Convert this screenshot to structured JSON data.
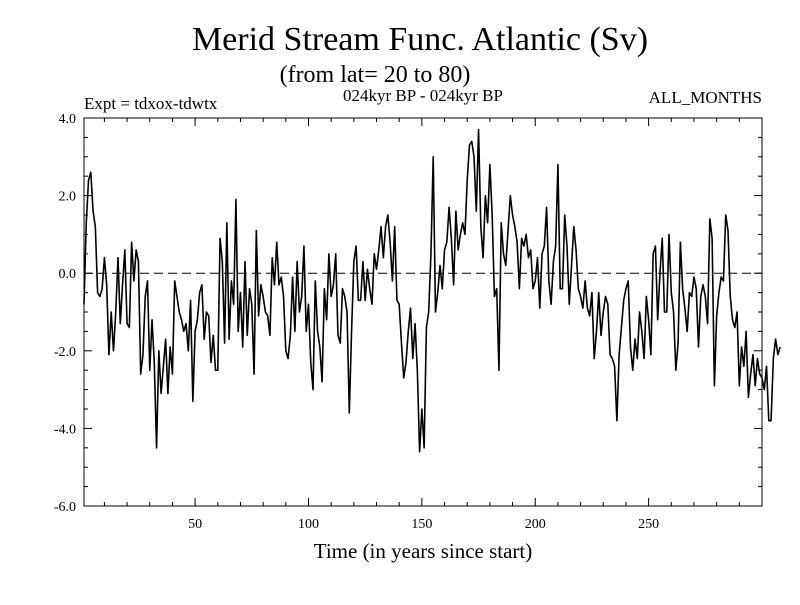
{
  "chart_data": {
    "type": "line",
    "title": "Merid Stream Func. Atlantic (Sv)",
    "subtitle": "(from lat= 20 to 80)",
    "header_left": "Expt = tdxox-tdwtx",
    "header_center": "024kyr BP - 024kyr BP",
    "header_right": "ALL_MONTHS",
    "xlabel": "Time (in years since start)",
    "ylabel": "",
    "xlim": [
      1,
      300
    ],
    "ylim": [
      -6,
      4
    ],
    "x_ticks": [
      50,
      100,
      150,
      200,
      250
    ],
    "x_tick_labels": [
      "50",
      "100",
      "150",
      "200",
      "250"
    ],
    "y_ticks": [
      -6,
      -4,
      -2,
      0,
      2,
      4
    ],
    "y_tick_labels": [
      "-6.0",
      "-4.0",
      "-2.0",
      "0.0",
      "2.0",
      "4.0"
    ],
    "reference_line": {
      "y": 0,
      "style": "dashed"
    },
    "grid": false,
    "line_color": "#000000",
    "series": [
      {
        "x_start": 1,
        "x_step": 1,
        "values": [
          -0.8,
          1.3,
          2.4,
          2.6,
          1.6,
          1.2,
          -0.5,
          -0.6,
          -0.4,
          0.4,
          -0.3,
          -2.1,
          -1.0,
          -2.0,
          -1.0,
          0.4,
          -1.3,
          -0.3,
          0.6,
          -1.3,
          -1.4,
          0.8,
          -0.2,
          0.6,
          0.3,
          -2.6,
          -2.1,
          -0.6,
          -0.2,
          -2.5,
          -1.2,
          -2.3,
          -4.5,
          -2.0,
          -3.1,
          -2.4,
          -1.7,
          -3.1,
          -1.9,
          -2.6,
          -0.2,
          -0.6,
          -1.0,
          -1.2,
          -1.5,
          -1.3,
          -2.0,
          -0.7,
          -3.3,
          -1.5,
          -1.2,
          -0.5,
          -0.3,
          -1.7,
          -1.0,
          -1.1,
          -2.3,
          -1.6,
          -2.5,
          -2.5,
          0.9,
          0.3,
          -1.8,
          1.3,
          -1.7,
          -0.2,
          -0.8,
          1.9,
          -1.5,
          -0.5,
          -1.9,
          0.3,
          -1.6,
          -0.4,
          -0.8,
          -2.6,
          1.1,
          -1.1,
          -0.3,
          -0.6,
          -1.0,
          -1.1,
          -1.6,
          0.4,
          -0.3,
          0.8,
          -0.3,
          -0.1,
          -0.6,
          -2.0,
          -2.2,
          -1.6,
          -0.1,
          -1.5,
          0.3,
          -1.0,
          -0.6,
          0.7,
          -1.5,
          -0.8,
          -2.3,
          -3.0,
          -0.2,
          -1.5,
          -1.9,
          -2.8,
          -0.4,
          -1.2,
          0.5,
          -0.6,
          -0.3,
          0.5,
          -1.6,
          -1.8,
          -0.4,
          -0.6,
          -1.0,
          -3.6,
          -1.5,
          0.3,
          0.7,
          -0.7,
          -0.7,
          0.3,
          -0.7,
          0.1,
          -0.4,
          -0.8,
          0.5,
          0.1,
          0.6,
          1.2,
          0.4,
          1.2,
          1.5,
          0.8,
          -0.2,
          1.2,
          -0.7,
          -0.8,
          -1.8,
          -2.7,
          -2.3,
          -1.5,
          -0.9,
          -2.2,
          -1.3,
          -2.5,
          -4.6,
          -3.5,
          -4.5,
          -1.4,
          -1.0,
          0.5,
          3.0,
          -1.0,
          -0.5,
          0.2,
          -0.4,
          0.6,
          0.8,
          1.7,
          0.9,
          -0.3,
          1.6,
          0.6,
          1.0,
          1.3,
          1.0,
          2.4,
          3.3,
          3.4,
          3.0,
          1.6,
          3.7,
          1.2,
          0.4,
          2.0,
          1.3,
          2.8,
          1.5,
          -0.6,
          -0.4,
          -2.5,
          1.3,
          0.5,
          0.2,
          1.1,
          2.0,
          1.5,
          1.2,
          0.8,
          -0.4,
          0.9,
          0.7,
          1.0,
          0.4,
          0.6,
          -0.4,
          -0.2,
          0.4,
          -0.9,
          0.5,
          0.7,
          1.7,
          -0.2,
          -0.8,
          0.3,
          0.7,
          2.8,
          -0.4,
          -0.4,
          1.5,
          0.7,
          -0.8,
          0.2,
          1.2,
          0.6,
          -0.4,
          -0.6,
          -0.9,
          -0.2,
          -0.9,
          -1.1,
          -0.5,
          -2.2,
          -1.5,
          -0.5,
          -1.6,
          -1.0,
          -0.6,
          -0.8,
          -2.1,
          -2.2,
          -2.4,
          -3.8,
          -2.1,
          -1.4,
          -0.7,
          -0.4,
          -0.2,
          -1.9,
          -2.5,
          -1.7,
          -2.2,
          -1.0,
          -1.5,
          -2.2,
          -0.6,
          -1.2,
          -2.1,
          0.5,
          0.7,
          -1.2,
          0.0,
          0.9,
          -1.0,
          -1.0,
          1.0,
          -0.5,
          -1.0,
          -2.5,
          -1.8,
          0.8,
          -0.4,
          -0.9,
          -1.5,
          -0.5,
          -0.6,
          -0.1,
          -0.4,
          -1.9,
          -0.6,
          -0.3,
          -0.6,
          -1.3,
          1.4,
          0.9,
          -2.9,
          -1.1,
          -0.5,
          -0.1,
          -0.2,
          1.5,
          1.1,
          -0.6,
          -1.2,
          -1.4,
          -1.0,
          -2.9,
          -1.9,
          -2.4,
          -1.5,
          -3.2,
          -2.6,
          -2.1,
          -2.9,
          -2.2,
          -2.6,
          -2.7,
          -3.0,
          -2.4,
          -3.8,
          -3.8,
          -2.2,
          -1.7,
          -2.1,
          -1.9
        ]
      }
    ]
  }
}
